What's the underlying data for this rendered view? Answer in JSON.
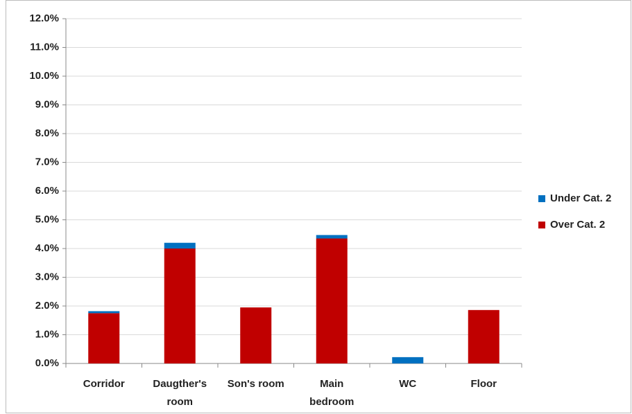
{
  "chart_data": {
    "type": "stacked_bar",
    "categories": [
      [
        "Corridor"
      ],
      [
        "Daugther's",
        "room"
      ],
      [
        "Son's room"
      ],
      [
        "Main",
        "bedroom"
      ],
      [
        "WC"
      ],
      [
        "Floor"
      ]
    ],
    "series": [
      {
        "name": "Over Cat. 2",
        "color": "#c00000",
        "values": [
          1.75,
          4.0,
          1.95,
          4.35,
          0,
          1.86
        ]
      },
      {
        "name": "Under Cat. 2",
        "color": "#0070c0",
        "values": [
          0.07,
          0.2,
          0,
          0.12,
          0.22,
          0
        ]
      }
    ],
    "ylim": [
      0,
      12
    ],
    "yticks": [
      {
        "value": 0,
        "label": "0.0%"
      },
      {
        "value": 1,
        "label": "1.0%"
      },
      {
        "value": 2,
        "label": "2.0%"
      },
      {
        "value": 3,
        "label": "3.0%"
      },
      {
        "value": 4,
        "label": "4.0%"
      },
      {
        "value": 5,
        "label": "5.0%"
      },
      {
        "value": 6,
        "label": "6.0%"
      },
      {
        "value": 7,
        "label": "7.0%"
      },
      {
        "value": 8,
        "label": "8.0%"
      },
      {
        "value": 9,
        "label": "9.0%"
      },
      {
        "value": 10,
        "label": "10.0%"
      },
      {
        "value": 11,
        "label": "11.0%"
      },
      {
        "value": 12,
        "label": "12.0%"
      }
    ],
    "grid": true,
    "legend": "right"
  }
}
